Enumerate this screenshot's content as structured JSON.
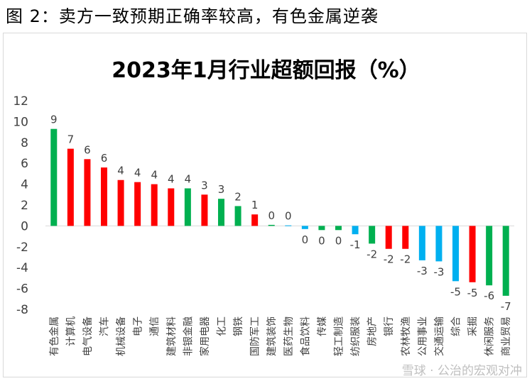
{
  "figure_caption": "图 2：卖方一致预期正确率较高，有色金属逆袭",
  "watermark": "雪球 · 公治的宏观对冲",
  "colors": {
    "positive": "#ff0000",
    "negative": "#00b0f0",
    "green": "#00b050",
    "axis": "#d9d9d9",
    "text": "#404040"
  },
  "chart_data": {
    "type": "bar",
    "title": "2023年1月行业超额回报（%）",
    "xlabel": "",
    "ylabel": "",
    "ylim": [
      -8,
      12
    ],
    "yticks": [
      -8,
      -6,
      -4,
      -2,
      0,
      2,
      4,
      6,
      8,
      10,
      12
    ],
    "grid": false,
    "categories": [
      "有色金属",
      "计算机",
      "电气设备",
      "汽车",
      "机械设备",
      "电子",
      "通信",
      "建筑材料",
      "非银金融",
      "家用电器",
      "化工",
      "钢铁",
      "国防军工",
      "建筑装饰",
      "医药生物",
      "食品饮料",
      "传媒",
      "轻工制造",
      "纺织服装",
      "房地产",
      "银行",
      "农林牧渔",
      "公用事业",
      "交通运输",
      "综合",
      "采掘",
      "休闲服务",
      "商业贸易"
    ],
    "values": [
      9.3,
      7.4,
      6.4,
      5.6,
      4.4,
      4.2,
      4.0,
      3.6,
      3.6,
      3.0,
      2.6,
      1.9,
      1.1,
      0.1,
      0.05,
      -0.3,
      -0.4,
      -0.4,
      -0.8,
      -1.7,
      -2.2,
      -2.2,
      -3.3,
      -3.4,
      -5.3,
      -5.4,
      -5.7,
      -6.7
    ],
    "data_labels": [
      "9",
      "7",
      "6",
      "6",
      "4",
      "4",
      "4",
      "4",
      "4",
      "3",
      "3",
      "2",
      "1",
      "0",
      "0",
      "0",
      "0",
      "0",
      "-1",
      "-2",
      "-2",
      "-2",
      "-3",
      "-3",
      "-5",
      "-5",
      "-6",
      "-7"
    ],
    "bar_colors": [
      "green",
      "red",
      "red",
      "red",
      "red",
      "red",
      "red",
      "red",
      "green",
      "red",
      "green",
      "green",
      "red",
      "green",
      "blue",
      "blue",
      "green",
      "green",
      "blue",
      "green",
      "red",
      "red",
      "blue",
      "blue",
      "blue",
      "red",
      "green",
      "green"
    ]
  }
}
